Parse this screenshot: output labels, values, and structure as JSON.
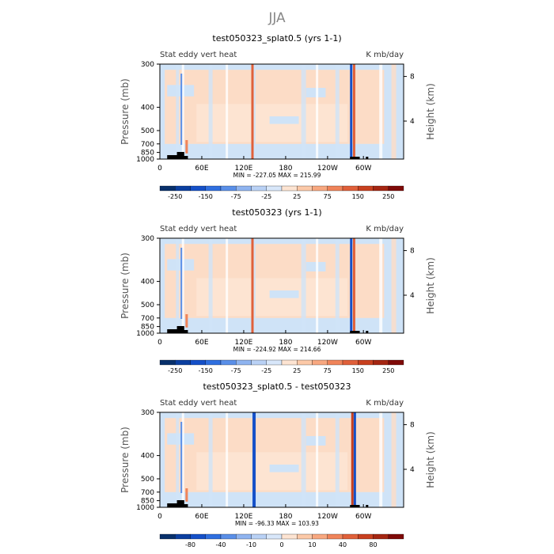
{
  "page_title": "JJA",
  "colors": {
    "background": "#cfe3f7",
    "warm": "#fcdcc6",
    "bottom_fill": "#000000"
  },
  "chart_data": [
    {
      "type": "heatmap",
      "title": "test050323_splat0.5 (yrs 1-1)",
      "left_label": "Stat eddy vert heat",
      "right_label": "K mb/day",
      "ylabel": "Pressure (mb)",
      "y2label": "Height (km)",
      "y_ticks": [
        "300",
        "400",
        "500",
        "700",
        "850",
        "1000"
      ],
      "y2_ticks": [
        "8",
        "4"
      ],
      "x_ticks": [
        "0",
        "60E",
        "120E",
        "180",
        "120W",
        "60W"
      ],
      "stats": "MIN = -227.05   MAX = 215.99",
      "colorbar": {
        "labels": [
          "-250",
          "-150",
          "-75",
          "-25",
          "25",
          "75",
          "150",
          "250"
        ],
        "colors": [
          "#08306b",
          "#0b3fa0",
          "#1550c8",
          "#2f6fe0",
          "#5a8fe8",
          "#8fb4f0",
          "#b9d1f5",
          "#d8e7fa",
          "#fde4d2",
          "#fcc9a8",
          "#f8a880",
          "#f0845a",
          "#e0603a",
          "#c8401f",
          "#a52612",
          "#7f0a08"
        ]
      }
    },
    {
      "type": "heatmap",
      "title": "test050323 (yrs 1-1)",
      "left_label": "Stat eddy vert heat",
      "right_label": "K mb/day",
      "ylabel": "Pressure (mb)",
      "y2label": "Height (km)",
      "y_ticks": [
        "300",
        "400",
        "500",
        "700",
        "850",
        "1000"
      ],
      "y2_ticks": [
        "8",
        "4"
      ],
      "x_ticks": [
        "0",
        "60E",
        "120E",
        "180",
        "120W",
        "60W"
      ],
      "stats": "MIN = -224.92   MAX = 214.66",
      "colorbar": {
        "labels": [
          "-250",
          "-150",
          "-75",
          "-25",
          "25",
          "75",
          "150",
          "250"
        ],
        "colors": [
          "#08306b",
          "#0b3fa0",
          "#1550c8",
          "#2f6fe0",
          "#5a8fe8",
          "#8fb4f0",
          "#b9d1f5",
          "#d8e7fa",
          "#fde4d2",
          "#fcc9a8",
          "#f8a880",
          "#f0845a",
          "#e0603a",
          "#c8401f",
          "#a52612",
          "#7f0a08"
        ]
      }
    },
    {
      "type": "heatmap",
      "title": "test050323_splat0.5 - test050323",
      "left_label": "Stat eddy vert heat",
      "right_label": "K mb/day",
      "ylabel": "Pressure (mb)",
      "y2label": "Height (km)",
      "y_ticks": [
        "300",
        "400",
        "500",
        "700",
        "850",
        "1000"
      ],
      "y2_ticks": [
        "8",
        "4"
      ],
      "x_ticks": [
        "0",
        "60E",
        "120E",
        "180",
        "120W",
        "60W"
      ],
      "stats": "MIN = -96.33   MAX = 103.93",
      "colorbar": {
        "labels": [
          "-80",
          "-40",
          "-10",
          "0",
          "10",
          "40",
          "80"
        ],
        "colors": [
          "#08306b",
          "#0b3fa0",
          "#1550c8",
          "#2f6fe0",
          "#5a8fe8",
          "#8fb4f0",
          "#b9d1f5",
          "#d8e7fa",
          "#fde4d2",
          "#fcc9a8",
          "#f8a880",
          "#f0845a",
          "#e0603a",
          "#c8401f",
          "#a52612",
          "#7f0a08"
        ]
      }
    }
  ]
}
